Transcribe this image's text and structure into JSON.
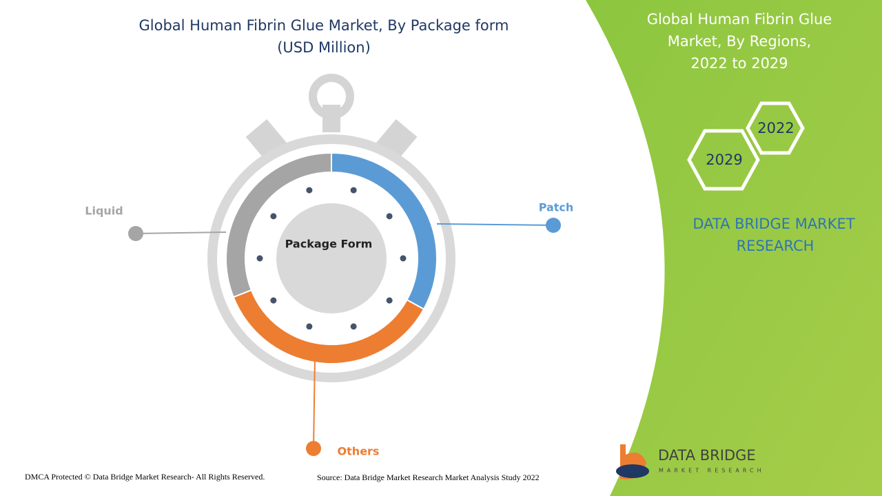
{
  "chart_data": {
    "type": "pie",
    "title": "Global Human Fibrin Glue Market, By Package form",
    "subtitle": "(USD Million)",
    "center_label": "Package Form",
    "categories": [
      "Patch",
      "Others",
      "Liquid"
    ],
    "values": [
      33,
      36,
      31
    ],
    "colors": [
      "#5b9bd5",
      "#ed7d31",
      "#a5a5a5"
    ]
  },
  "sidebar": {
    "title": [
      "Global Human Fibrin Glue",
      "Market, By Regions,",
      "2022 to 2029"
    ],
    "years": [
      "2022",
      "2029"
    ],
    "brand": [
      "DATA BRIDGE MARKET",
      "RESEARCH"
    ]
  },
  "logo": {
    "name": "DATA BRIDGE",
    "tagline": "MARKET RESEARCH"
  },
  "footer": {
    "copyright": "DMCA Protected © Data Bridge Market Research- All Rights Reserved.",
    "source": "Source: Data Bridge Market Research Market Analysis Study 2022"
  }
}
